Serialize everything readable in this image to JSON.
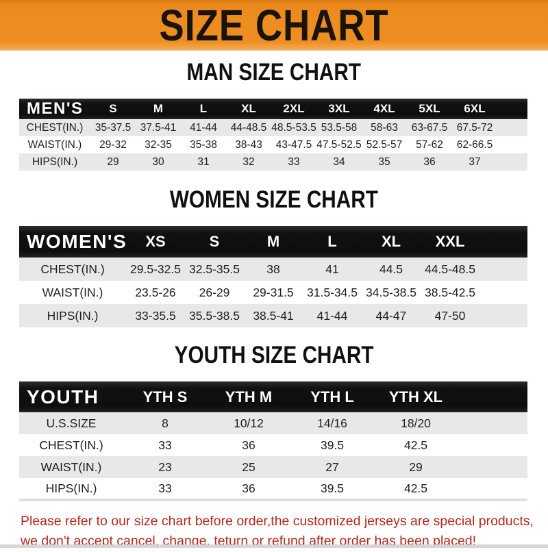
{
  "banner": {
    "title": "SIZE CHART"
  },
  "colors": {
    "banner_orange": "#EC8A1D",
    "header_bar_black": "#111111",
    "row_alt_gray": "#E8E8E8",
    "footer_red": "#B5271D"
  },
  "sections": [
    {
      "heading": "MAN SIZE CHART",
      "table": {
        "header_label": "MEN'S",
        "columns": [
          "S",
          "M",
          "L",
          "XL",
          "2XL",
          "3XL",
          "4XL",
          "5XL",
          "6XL"
        ],
        "rows": [
          {
            "label": "CHEST(IN.)",
            "values": [
              "35-37.5",
              "37.5-41",
              "41-44",
              "44-48.5",
              "48.5-53.5",
              "53.5-58",
              "58-63",
              "63-67.5",
              "67.5-72"
            ]
          },
          {
            "label": "WAIST(IN.)",
            "values": [
              "29-32",
              "32-35",
              "35-38",
              "38-43",
              "43-47.5",
              "47.5-52.5",
              "52.5-57",
              "57-62",
              "62-66.5"
            ]
          },
          {
            "label": "HIPS(IN.)",
            "values": [
              "29",
              "30",
              "31",
              "32",
              "33",
              "34",
              "35",
              "36",
              "37"
            ]
          }
        ]
      }
    },
    {
      "heading": "WOMEN SIZE CHART",
      "table": {
        "header_label": "WOMEN'S",
        "columns": [
          "XS",
          "S",
          "M",
          "L",
          "XL",
          "XXL"
        ],
        "rows": [
          {
            "label": "CHEST(IN.)",
            "values": [
              "29.5-32.5",
              "32.5-35.5",
              "38",
              "41",
              "44.5",
              "44.5-48.5"
            ]
          },
          {
            "label": "WAIST(IN.)",
            "values": [
              "23.5-26",
              "26-29",
              "29-31.5",
              "31.5-34.5",
              "34.5-38.5",
              "38.5-42.5"
            ]
          },
          {
            "label": "HIPS(IN.)",
            "values": [
              "33-35.5",
              "35.5-38.5",
              "38.5-41",
              "41-44",
              "44-47",
              "47-50"
            ]
          }
        ]
      }
    },
    {
      "heading": "YOUTH SIZE CHART",
      "table": {
        "header_label": "YOUTH",
        "columns": [
          "YTH S",
          "YTH M",
          "YTH L",
          "YTH XL"
        ],
        "rows": [
          {
            "label": "U.S.SIZE",
            "values": [
              "8",
              "10/12",
              "14/16",
              "18/20"
            ]
          },
          {
            "label": "CHEST(IN.)",
            "values": [
              "33",
              "36",
              "39.5",
              "42.5"
            ]
          },
          {
            "label": "WAIST(IN.)",
            "values": [
              "23",
              "25",
              "27",
              "29"
            ]
          },
          {
            "label": "HIPS(IN.)",
            "values": [
              "33",
              "36",
              "39.5",
              "42.5"
            ]
          }
        ]
      }
    }
  ],
  "footer": {
    "line1": "Please refer to our size chart before order,the customized jerseys are special products,",
    "line2": "we don't accept cancel, change, teturn or refund after order has been placed!"
  }
}
